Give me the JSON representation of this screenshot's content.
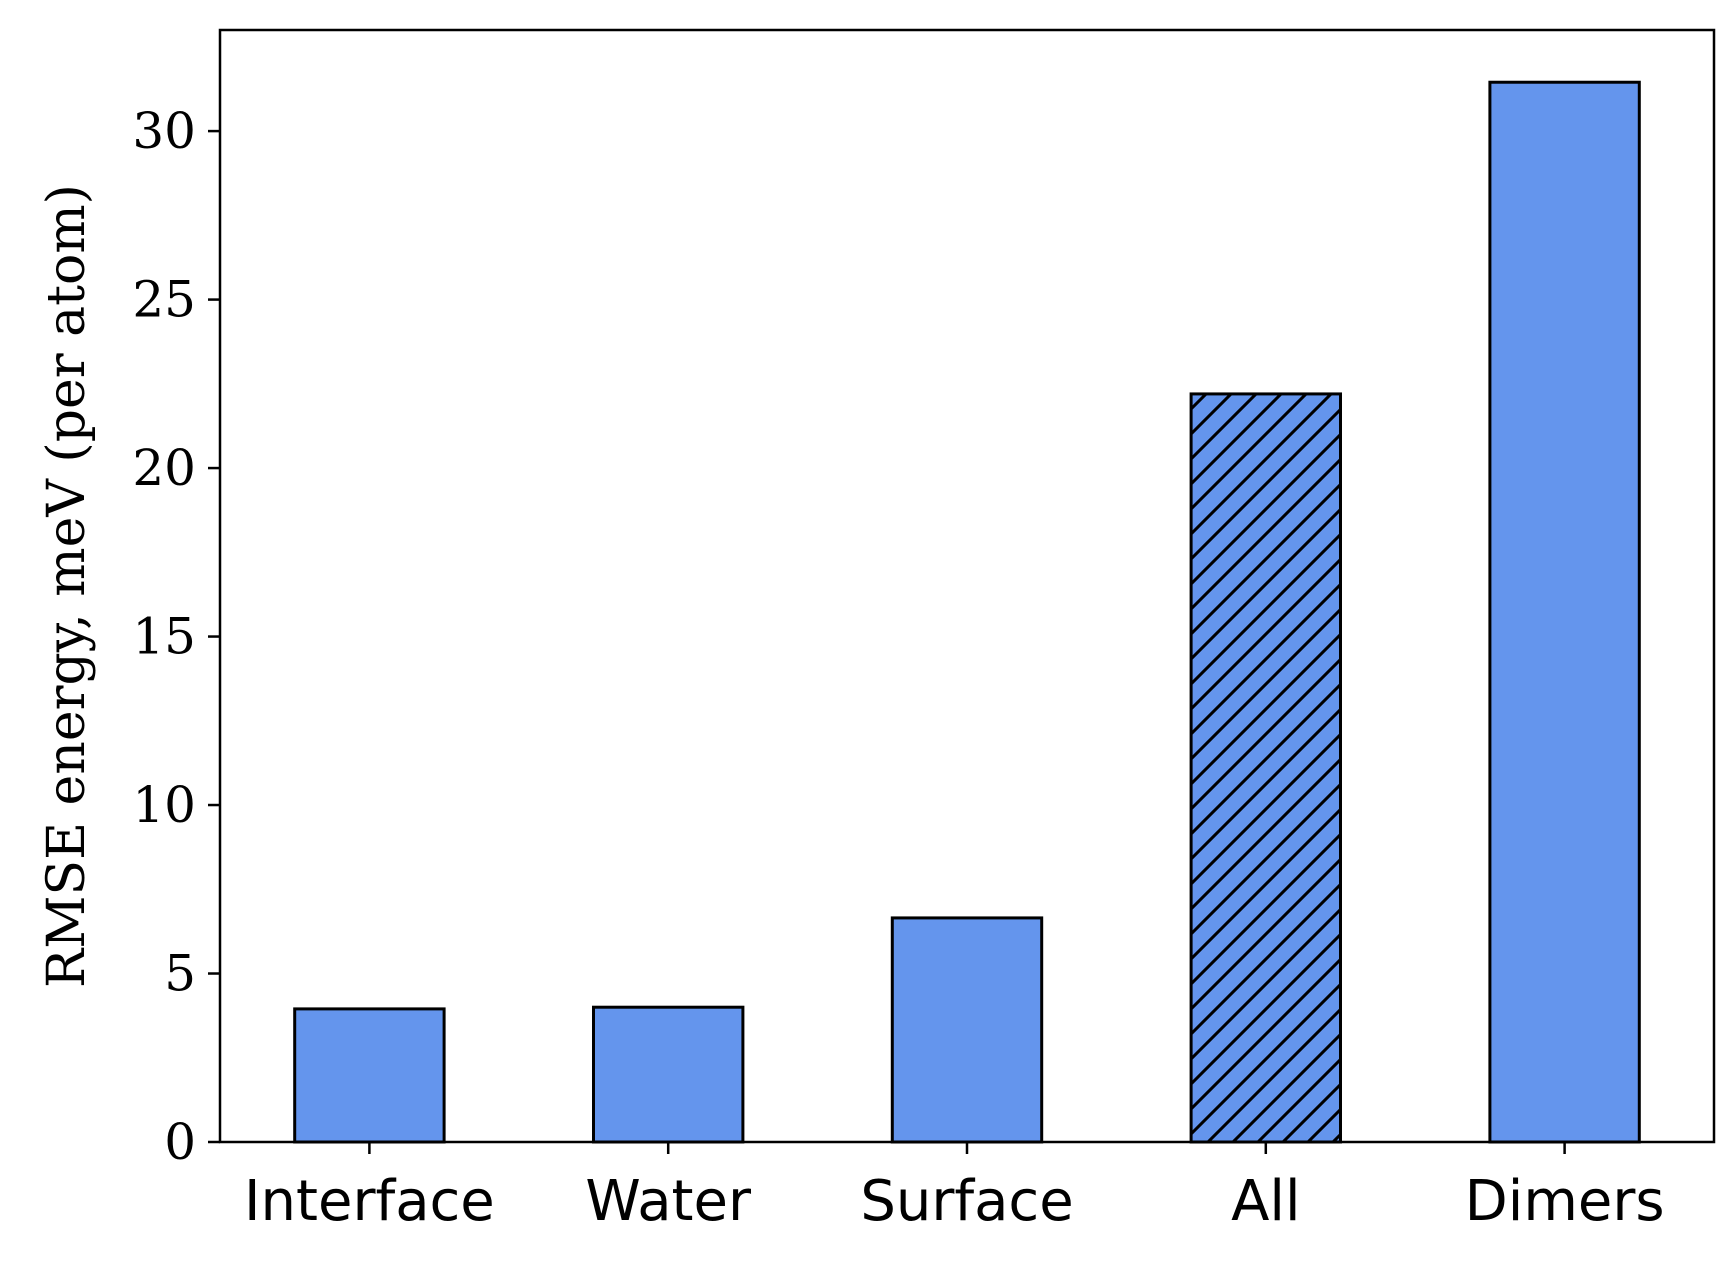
{
  "chart_data": {
    "type": "bar",
    "categories": [
      "Interface",
      "Water",
      "Surface",
      "All",
      "Dimers"
    ],
    "values": [
      3.95,
      4.0,
      6.65,
      22.2,
      31.45
    ],
    "hatched": [
      false,
      false,
      false,
      true,
      false
    ],
    "ylabel": "RMSE energy, meV (per atom)",
    "xlabel": "",
    "ylim": [
      0,
      33
    ],
    "yticks": [
      0,
      5,
      10,
      15,
      20,
      25,
      30
    ],
    "grid": false,
    "bar_color": "#6495ED",
    "edge_color": "#000000"
  }
}
